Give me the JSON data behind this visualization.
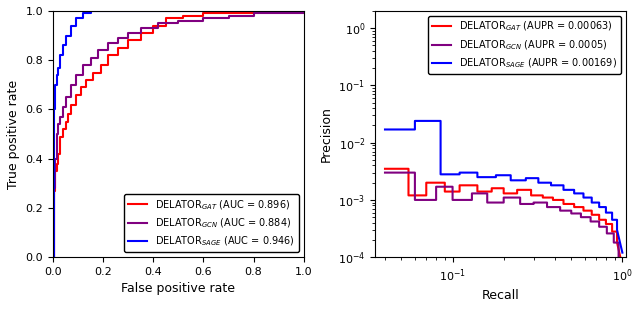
{
  "title": "",
  "roc_xlabel": "False positive rate",
  "roc_ylabel": "True positive rate",
  "pr_xlabel": "Recall",
  "pr_ylabel": "Precision",
  "colors": {
    "GAT": "#ff0000",
    "GCN": "#800080",
    "SAGE": "#0000ff"
  },
  "legend_roc": [
    "DELATOR$_{GAT}$ (AUC = 0.896)",
    "DELATOR$_{GCN}$ (AUC = 0.884)",
    "DELATOR$_{SAGE}$ (AUC = 0.946)"
  ],
  "legend_pr": [
    "DELATOR$_{GAT}$ (AUPR = 0.00063)",
    "DELATOR$_{GCN}$ (AUPR = 0.0005)",
    "DELATOR$_{SAGE}$ (AUPR = 0.00169)"
  ],
  "background_color": "#ffffff",
  "roc_gat_fpr": [
    0,
    0.005,
    0.01,
    0.015,
    0.02,
    0.03,
    0.04,
    0.05,
    0.06,
    0.07,
    0.09,
    0.11,
    0.13,
    0.16,
    0.19,
    0.22,
    0.26,
    0.3,
    0.35,
    0.4,
    0.45,
    0.52,
    0.6,
    0.7,
    0.8,
    1.0
  ],
  "roc_gat_tpr": [
    0,
    0.27,
    0.35,
    0.38,
    0.42,
    0.49,
    0.52,
    0.55,
    0.58,
    0.62,
    0.66,
    0.69,
    0.72,
    0.75,
    0.78,
    0.82,
    0.85,
    0.88,
    0.91,
    0.94,
    0.97,
    0.98,
    0.99,
    0.99,
    1.0,
    1.0
  ],
  "roc_gcn_fpr": [
    0,
    0.005,
    0.01,
    0.015,
    0.02,
    0.03,
    0.04,
    0.05,
    0.07,
    0.09,
    0.12,
    0.15,
    0.18,
    0.22,
    0.26,
    0.3,
    0.35,
    0.42,
    0.5,
    0.6,
    0.7,
    0.8,
    1.0
  ],
  "roc_gcn_tpr": [
    0,
    0.28,
    0.4,
    0.5,
    0.54,
    0.57,
    0.61,
    0.65,
    0.7,
    0.74,
    0.78,
    0.81,
    0.84,
    0.87,
    0.89,
    0.91,
    0.93,
    0.95,
    0.96,
    0.97,
    0.98,
    0.99,
    1.0
  ],
  "roc_sage_fpr": [
    0,
    0.003,
    0.005,
    0.008,
    0.01,
    0.015,
    0.02,
    0.03,
    0.04,
    0.05,
    0.07,
    0.09,
    0.12,
    0.15,
    0.2,
    0.28,
    1.0
  ],
  "roc_sage_tpr": [
    0,
    0.49,
    0.6,
    0.65,
    0.7,
    0.74,
    0.77,
    0.82,
    0.86,
    0.9,
    0.94,
    0.97,
    0.99,
    1.0,
    1.0,
    1.0,
    1.0
  ],
  "pr_gat_recall": [
    0.04,
    0.04,
    0.055,
    0.055,
    0.07,
    0.07,
    0.09,
    0.09,
    0.11,
    0.11,
    0.14,
    0.14,
    0.17,
    0.17,
    0.2,
    0.2,
    0.24,
    0.24,
    0.29,
    0.29,
    0.34,
    0.34,
    0.39,
    0.39,
    0.45,
    0.45,
    0.52,
    0.52,
    0.59,
    0.59,
    0.66,
    0.66,
    0.73,
    0.73,
    0.8,
    0.8,
    0.87,
    0.87,
    0.93,
    0.93,
    1.0
  ],
  "pr_gat_prec": [
    0.0035,
    0.0035,
    0.0035,
    0.0012,
    0.0012,
    0.002,
    0.002,
    0.0014,
    0.0014,
    0.0018,
    0.0018,
    0.0014,
    0.0014,
    0.0016,
    0.0016,
    0.0013,
    0.0013,
    0.0015,
    0.0015,
    0.0012,
    0.0012,
    0.0011,
    0.0011,
    0.001,
    0.001,
    0.00085,
    0.00085,
    0.00075,
    0.00075,
    0.00065,
    0.00065,
    0.00055,
    0.00055,
    0.00045,
    0.00045,
    0.00038,
    0.00038,
    0.00028,
    0.00028,
    0.00018,
    7e-05
  ],
  "pr_gcn_recall": [
    0.04,
    0.04,
    0.06,
    0.06,
    0.08,
    0.08,
    0.1,
    0.1,
    0.13,
    0.13,
    0.16,
    0.16,
    0.2,
    0.2,
    0.25,
    0.25,
    0.3,
    0.3,
    0.36,
    0.36,
    0.43,
    0.43,
    0.5,
    0.5,
    0.57,
    0.57,
    0.65,
    0.65,
    0.73,
    0.73,
    0.81,
    0.81,
    0.89,
    0.89,
    0.95,
    0.95,
    1.0
  ],
  "pr_gcn_prec": [
    0.003,
    0.003,
    0.003,
    0.001,
    0.001,
    0.0017,
    0.0017,
    0.001,
    0.001,
    0.0013,
    0.0013,
    0.0009,
    0.0009,
    0.0011,
    0.0011,
    0.00085,
    0.00085,
    0.0009,
    0.0009,
    0.00075,
    0.00075,
    0.00065,
    0.00065,
    0.00058,
    0.00058,
    0.0005,
    0.0005,
    0.00042,
    0.00042,
    0.00034,
    0.00034,
    0.00026,
    0.00026,
    0.00018,
    0.00018,
    0.0001,
    3e-05
  ],
  "pr_sage_recall": [
    0.04,
    0.04,
    0.06,
    0.06,
    0.085,
    0.085,
    0.11,
    0.11,
    0.14,
    0.14,
    0.18,
    0.18,
    0.22,
    0.22,
    0.27,
    0.27,
    0.32,
    0.32,
    0.38,
    0.38,
    0.45,
    0.45,
    0.52,
    0.52,
    0.59,
    0.59,
    0.66,
    0.66,
    0.73,
    0.73,
    0.8,
    0.8,
    0.87,
    0.87,
    0.93,
    0.93,
    1.0
  ],
  "pr_sage_prec": [
    0.017,
    0.017,
    0.017,
    0.024,
    0.024,
    0.0028,
    0.0028,
    0.003,
    0.003,
    0.0025,
    0.0025,
    0.0027,
    0.0027,
    0.0022,
    0.0022,
    0.0024,
    0.0024,
    0.002,
    0.002,
    0.0018,
    0.0018,
    0.0015,
    0.0015,
    0.0013,
    0.0013,
    0.0011,
    0.0011,
    0.0009,
    0.0009,
    0.00075,
    0.00075,
    0.0006,
    0.0006,
    0.00045,
    0.00045,
    0.0003,
    0.00012
  ]
}
